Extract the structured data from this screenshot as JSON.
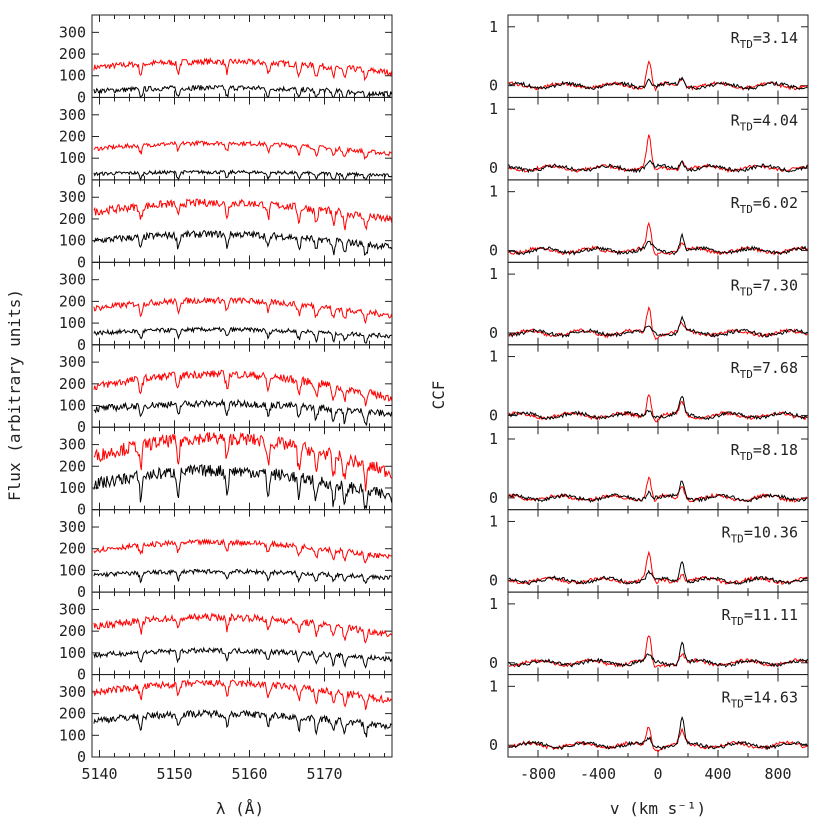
{
  "chart_data": [
    {
      "type": "line",
      "title": "",
      "xlabel": "λ (Å)",
      "ylabel": "Flux (arbitrary units)",
      "xlim": [
        5139,
        5179
      ],
      "x_ticks": [
        5140,
        5150,
        5160,
        5170
      ],
      "ylim_per_panel": [
        0,
        380
      ],
      "y_ticks": [
        0,
        100,
        200,
        300
      ],
      "grid": false,
      "series_colors": {
        "upper": "#ff0000",
        "lower": "#000000"
      },
      "panels": [
        {
          "red_level": 140,
          "red_amp": 25,
          "black_level": 30,
          "black_amp": 15,
          "noise_red": 14,
          "noise_black": 12
        },
        {
          "red_level": 145,
          "red_amp": 25,
          "black_level": 28,
          "black_amp": 8,
          "noise_red": 10,
          "noise_black": 8
        },
        {
          "red_level": 235,
          "red_amp": 40,
          "black_level": 100,
          "black_amp": 30,
          "noise_red": 18,
          "noise_black": 16
        },
        {
          "red_level": 170,
          "red_amp": 35,
          "black_level": 55,
          "black_amp": 15,
          "noise_red": 14,
          "noise_black": 10
        },
        {
          "red_level": 190,
          "red_amp": 55,
          "black_level": 85,
          "black_amp": 25,
          "noise_red": 18,
          "noise_black": 16
        },
        {
          "red_level": 250,
          "red_amp": 80,
          "black_level": 120,
          "black_amp": 60,
          "noise_red": 30,
          "noise_black": 28
        },
        {
          "red_level": 195,
          "red_amp": 35,
          "black_level": 80,
          "black_amp": 15,
          "noise_red": 12,
          "noise_black": 10
        },
        {
          "red_level": 225,
          "red_amp": 40,
          "black_level": 90,
          "black_amp": 20,
          "noise_red": 16,
          "noise_black": 12
        },
        {
          "red_level": 300,
          "red_amp": 40,
          "black_level": 170,
          "black_amp": 30,
          "noise_red": 16,
          "noise_black": 16
        }
      ]
    },
    {
      "type": "line",
      "title": "",
      "xlabel": "v (km s⁻¹)",
      "ylabel": "CCF",
      "xlim": [
        -1000,
        1000
      ],
      "x_ticks": [
        -800,
        -400,
        0,
        400,
        800
      ],
      "ylim_per_panel": [
        -0.2,
        1.2
      ],
      "y_ticks": [
        0,
        1
      ],
      "grid": false,
      "series_colors": {
        "red": "#ff0000",
        "black": "#000000"
      },
      "panels": [
        {
          "label": "R",
          "sub": "TD",
          "value": "=3.14",
          "red_peak": 0.45,
          "black_peak": 0.12
        },
        {
          "label": "R",
          "sub": "TD",
          "value": "=4.04",
          "red_peak": 0.55,
          "black_peak": 0.15
        },
        {
          "label": "R",
          "sub": "TD",
          "value": "=6.02",
          "red_peak": 0.45,
          "black_peak": 0.28
        },
        {
          "label": "R",
          "sub": "TD",
          "value": "=7.30",
          "red_peak": 0.45,
          "black_peak": 0.25
        },
        {
          "label": "R",
          "sub": "TD",
          "value": "=7.68",
          "red_peak": 0.4,
          "black_peak": 0.3
        },
        {
          "label": "R",
          "sub": "TD",
          "value": "=8.18",
          "red_peak": 0.35,
          "black_peak": 0.3
        },
        {
          "label": "R",
          "sub": "TD",
          "value": "=10.36",
          "red_peak": 0.45,
          "black_peak": 0.35
        },
        {
          "label": "R",
          "sub": "TD",
          "value": "=11.11",
          "red_peak": 0.45,
          "black_peak": 0.38
        },
        {
          "label": "R",
          "sub": "TD",
          "value": "=14.63",
          "red_peak": 0.35,
          "black_peak": 0.45
        }
      ]
    }
  ]
}
